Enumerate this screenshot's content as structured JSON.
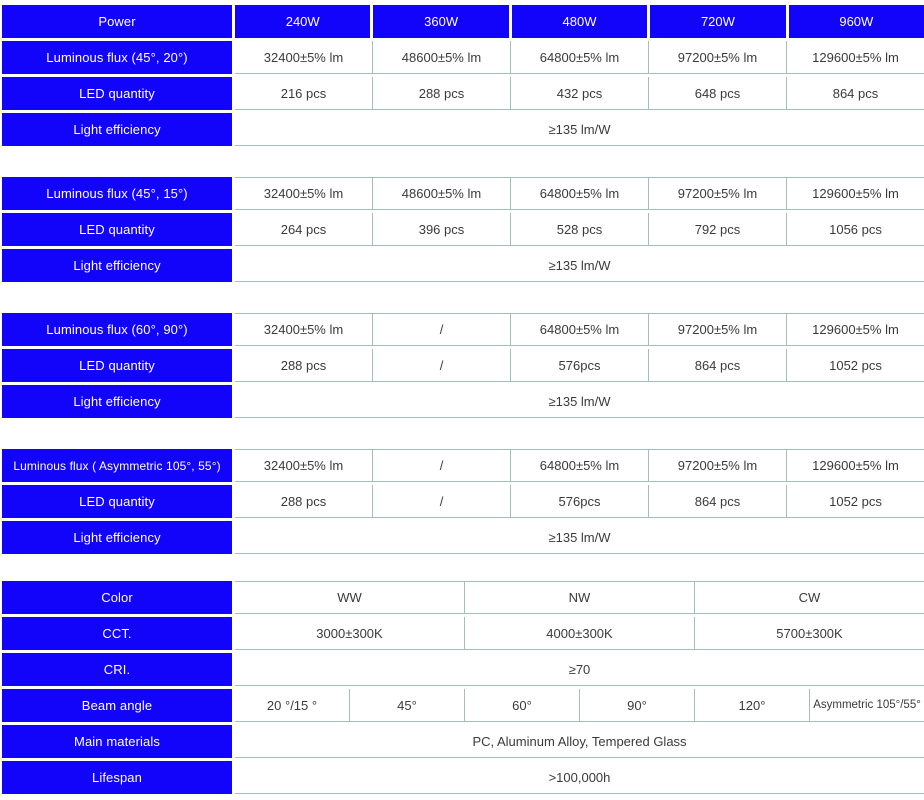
{
  "colors": {
    "header_bg": "#1203fb",
    "header_text": "#ffffff",
    "grid_line": "#a3bcbc",
    "value_text": "#3a3a3a"
  },
  "power_row": {
    "label": "Power",
    "values": [
      "240W",
      "360W",
      "480W",
      "720W",
      "960W"
    ]
  },
  "labels": {
    "led_quantity": "LED quantity",
    "light_efficiency": "Light efficiency"
  },
  "blocks": [
    {
      "flux_label": "Luminous flux (45°, 20°)",
      "flux": [
        "32400±5% lm",
        "48600±5% lm",
        "64800±5% lm",
        "97200±5% lm",
        "129600±5% lm"
      ],
      "led": [
        "216 pcs",
        "288 pcs",
        "432 pcs",
        "648 pcs",
        "864 pcs"
      ],
      "efficiency": "≥135 lm/W"
    },
    {
      "flux_label": "Luminous flux (45°, 15°)",
      "flux": [
        "32400±5% lm",
        "48600±5% lm",
        "64800±5% lm",
        "97200±5% lm",
        "129600±5% lm"
      ],
      "led": [
        "264 pcs",
        "396 pcs",
        "528 pcs",
        "792 pcs",
        "1056 pcs"
      ],
      "efficiency": "≥135 lm/W"
    },
    {
      "flux_label": "Luminous flux (60°, 90°)",
      "flux": [
        "32400±5% lm",
        "/",
        "64800±5% lm",
        "97200±5% lm",
        "129600±5% lm"
      ],
      "led": [
        "288 pcs",
        "/",
        "576pcs",
        "864 pcs",
        "1052 pcs"
      ],
      "efficiency": "≥135 lm/W"
    },
    {
      "flux_label": "Luminous flux ( Asymmetric 105°, 55°)",
      "flux": [
        "32400±5% lm",
        "/",
        "64800±5% lm",
        "97200±5% lm",
        "129600±5% lm"
      ],
      "led": [
        "288 pcs",
        "/",
        "576pcs",
        "864 pcs",
        "1052 pcs"
      ],
      "efficiency": "≥135 lm/W"
    }
  ],
  "general": {
    "color_label": "Color",
    "color_values": [
      "WW",
      "NW",
      "CW"
    ],
    "cct_label": "CCT.",
    "cct_values": [
      "3000±300K",
      "4000±300K",
      "5700±300K"
    ],
    "cri_label": "CRI.",
    "cri_value": "≥70",
    "beam_label": "Beam angle",
    "beam_values": [
      "20 °/15 °",
      "45°",
      "60°",
      "90°",
      "120°",
      "Asymmetric 105°/55°"
    ],
    "materials_label": "Main materials",
    "materials_value": "PC, Aluminum Alloy, Tempered Glass",
    "lifespan_label": "Lifespan",
    "lifespan_value": ">100,000h"
  }
}
